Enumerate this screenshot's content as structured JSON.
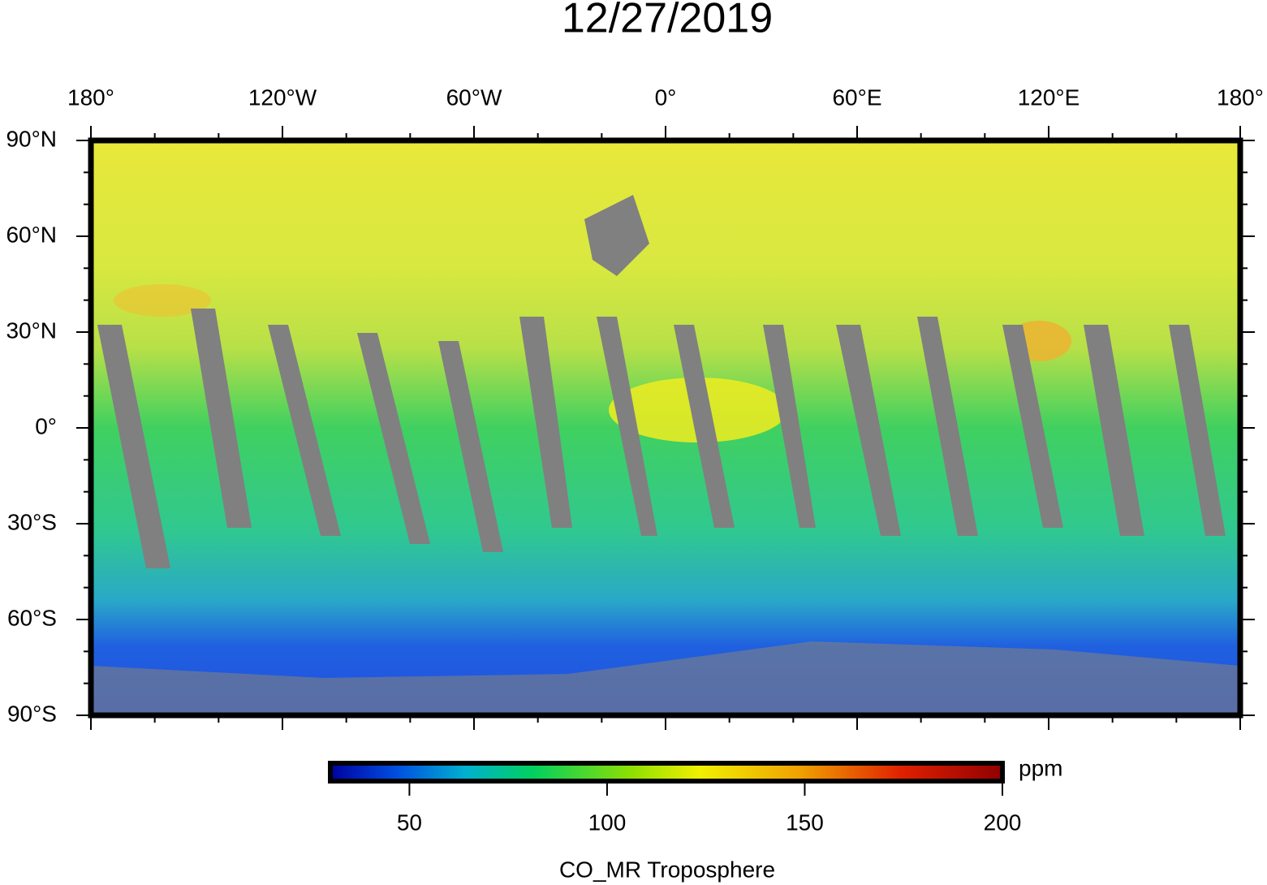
{
  "title": "12/27/2019",
  "map": {
    "lon_labels": [
      "180°",
      "120°W",
      "60°W",
      "0°",
      "60°E",
      "120°E",
      "180°"
    ],
    "lat_labels": [
      "90°N",
      "60°N",
      "30°N",
      "0°",
      "30°S",
      "60°S",
      "90°S"
    ]
  },
  "colorbar": {
    "lim": [
      30,
      200
    ],
    "ticks": [
      50,
      100,
      150,
      200
    ],
    "unit": "ppm",
    "label": "CO_MR Troposphere"
  }
}
